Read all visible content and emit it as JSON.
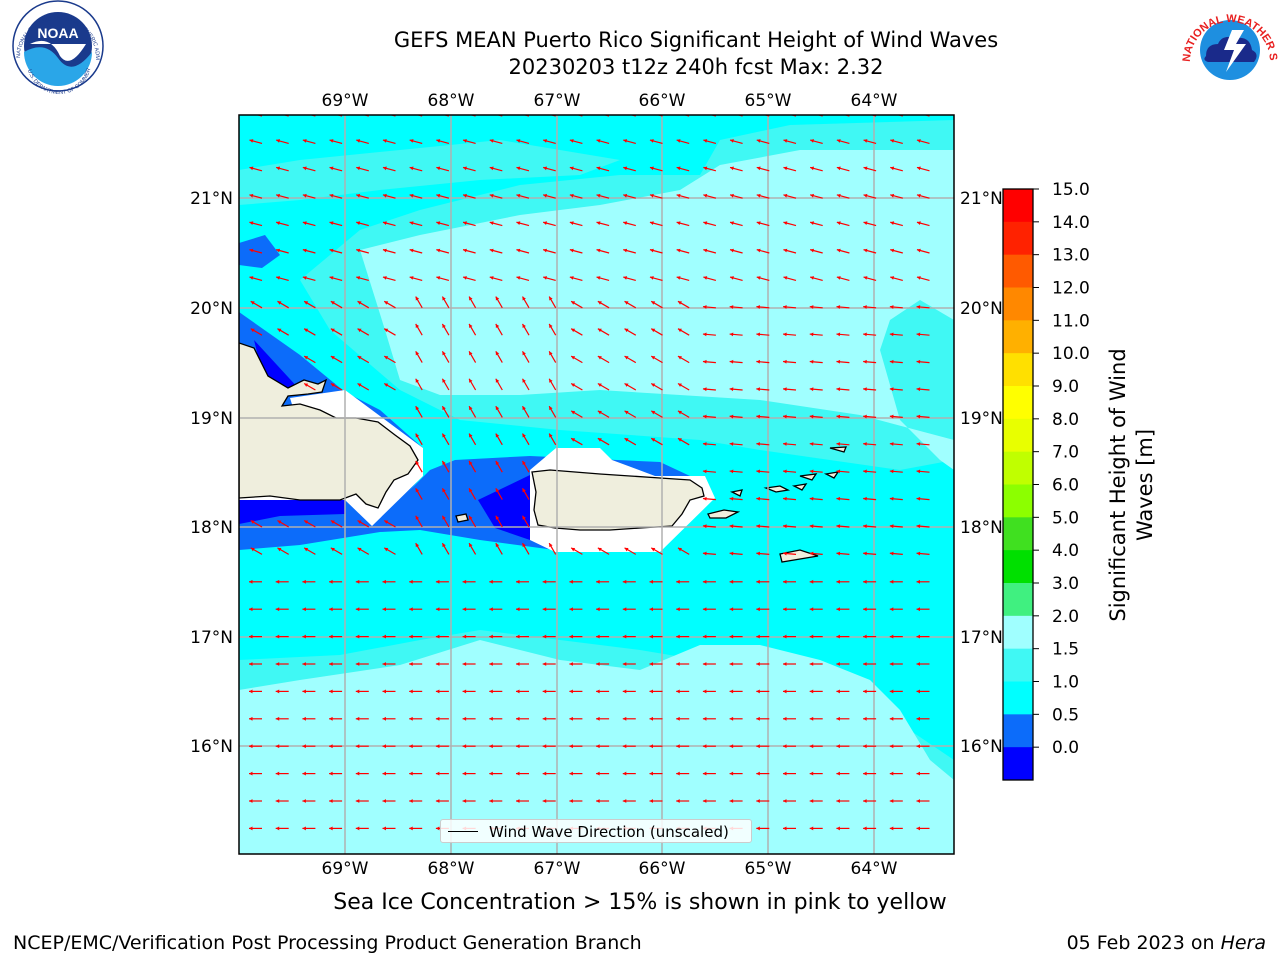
{
  "title": {
    "line1": "GEFS MEAN Puerto Rico Significant Height of Wind Waves",
    "line2": "20230203 t12z 240h fcst   Max: 2.32"
  },
  "map": {
    "lon_labels": [
      "69°W",
      "68°W",
      "67°W",
      "66°W",
      "65°W",
      "64°W"
    ],
    "lat_labels": [
      "21°N",
      "20°N",
      "19°N",
      "18°N",
      "17°N",
      "16°N"
    ],
    "colors": {
      "land": "#efeedd",
      "coast": "#000000",
      "arrow": "#ff0000",
      "grid": "#b0b0b0",
      "sea_05_10": "#0c6cfa",
      "sea_10_15": "#00ffff",
      "sea_15_20": "#40f8f4",
      "sea_20_30": "#a0ffff",
      "sea_00_05": "#0000ff"
    }
  },
  "legend": {
    "label": "Wind Wave Direction (unscaled)"
  },
  "colorbar": {
    "label_line1": "Significant Height of Wind",
    "label_line2": "Waves [m]",
    "ticks": [
      "15.0",
      "14.0",
      "13.0",
      "12.0",
      "11.0",
      "10.0",
      "9.0",
      "8.0",
      "7.0",
      "6.0",
      "5.0",
      "4.0",
      "3.0",
      "2.0",
      "1.5",
      "1.0",
      "0.5",
      "0.0"
    ],
    "bands": [
      "#ff0000",
      "#ff2200",
      "#ff5a00",
      "#ff8800",
      "#ffb000",
      "#ffe000",
      "#ffff00",
      "#e8ff00",
      "#c0ff00",
      "#8cff00",
      "#40e020",
      "#00e000",
      "#40f080",
      "#a0ffff",
      "#40f8f4",
      "#00ffff",
      "#0c6cfa",
      "#0000ff"
    ]
  },
  "sea_ice_note": "Sea Ice Concentration > 15% is shown in pink to yellow",
  "footer": {
    "left": "NCEP/EMC/Verification Post Processing Product Generation Branch",
    "right_prefix": "05 Feb 2023 on ",
    "right_italic": "Hera"
  },
  "logos": {
    "noaa_text": "NOAA",
    "noaa_ring": "NATIONAL OCEANIC AND ATMOSPHERIC ADMINISTRATION",
    "noaa_ring_bottom": "U.S. DEPARTMENT OF COMMERCE",
    "nws_ring": "NATIONAL WEATHER SERVICE"
  }
}
